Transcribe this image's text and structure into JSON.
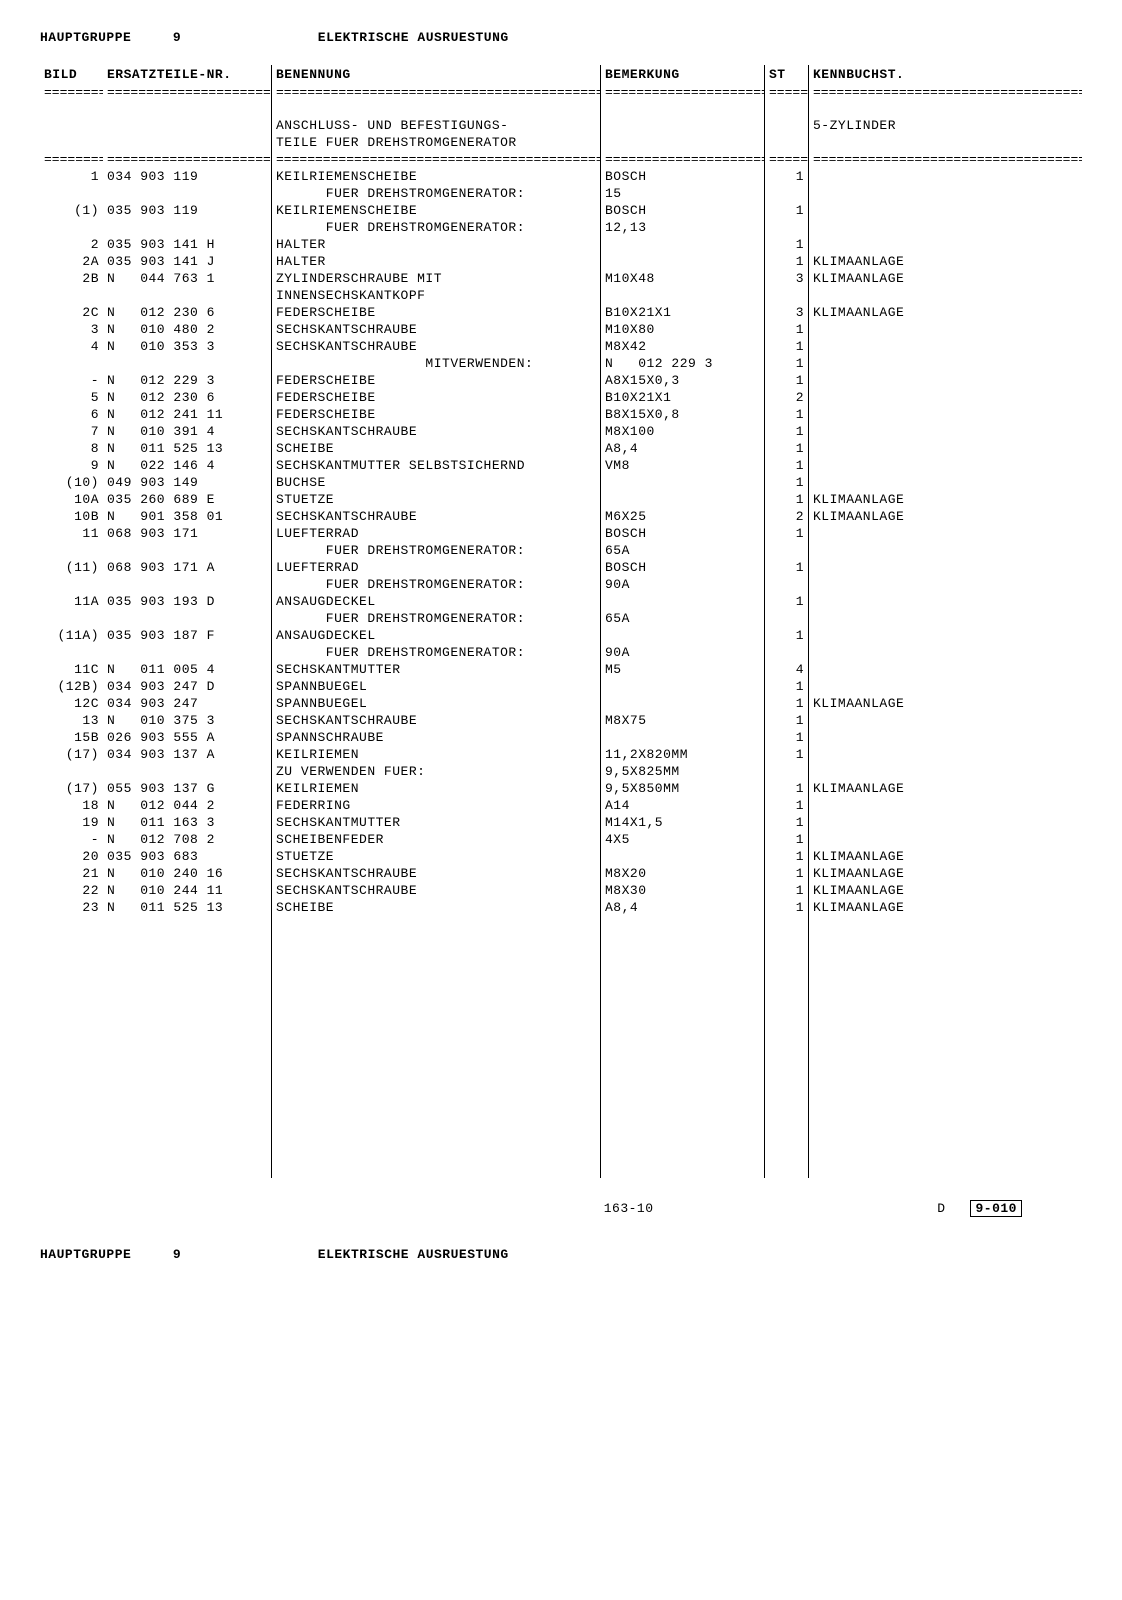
{
  "header": {
    "hauptgruppe_label": "HAUPTGRUPPE",
    "hauptgruppe_nr": "9",
    "title": "ELEKTRISCHE  AUSRUESTUNG"
  },
  "columns": {
    "bild": "BILD",
    "nr": "ERSATZTEILE-NR.",
    "ben": "BENENNUNG",
    "bem": "BEMERKUNG",
    "st": "ST",
    "kenn": "KENNBUCHST."
  },
  "intro": {
    "line1": "ANSCHLUSS- UND BEFESTIGUNGS-",
    "line2": "TEILE FUER DREHSTROMGENERATOR",
    "kenn": "5-ZYLINDER"
  },
  "rows": [
    {
      "bild": "1",
      "nr": "034 903 119",
      "ben": "KEILRIEMENSCHEIBE",
      "bem": "BOSCH",
      "st": "1",
      "kenn": ""
    },
    {
      "bild": "",
      "nr": "",
      "ben": "      FUER DREHSTROMGENERATOR:",
      "bem": "15",
      "st": "",
      "kenn": ""
    },
    {
      "bild": "(1)",
      "nr": "035 903 119",
      "ben": "KEILRIEMENSCHEIBE",
      "bem": "BOSCH",
      "st": "1",
      "kenn": ""
    },
    {
      "bild": "",
      "nr": "",
      "ben": "      FUER DREHSTROMGENERATOR:",
      "bem": "12,13",
      "st": "",
      "kenn": ""
    },
    {
      "bild": "2",
      "nr": "035 903 141 H",
      "ben": "HALTER",
      "bem": "",
      "st": "1",
      "kenn": ""
    },
    {
      "bild": "2A",
      "nr": "035 903 141 J",
      "ben": "HALTER",
      "bem": "",
      "st": "1",
      "kenn": "KLIMAANLAGE"
    },
    {
      "bild": "2B",
      "nr": "N   044 763 1",
      "ben": "ZYLINDERSCHRAUBE MIT",
      "bem": "M10X48",
      "st": "3",
      "kenn": "KLIMAANLAGE"
    },
    {
      "bild": "",
      "nr": "",
      "ben": "INNENSECHSKANTKOPF",
      "bem": "",
      "st": "",
      "kenn": ""
    },
    {
      "bild": "2C",
      "nr": "N   012 230 6",
      "ben": "FEDERSCHEIBE",
      "bem": "B10X21X1",
      "st": "3",
      "kenn": "KLIMAANLAGE"
    },
    {
      "bild": "3",
      "nr": "N   010 480 2",
      "ben": "SECHSKANTSCHRAUBE",
      "bem": "M10X80",
      "st": "1",
      "kenn": ""
    },
    {
      "bild": "4",
      "nr": "N   010 353 3",
      "ben": "SECHSKANTSCHRAUBE",
      "bem": "M8X42",
      "st": "1",
      "kenn": ""
    },
    {
      "bild": "",
      "nr": "",
      "ben": "                  MITVERWENDEN:",
      "bem": "N   012 229 3",
      "st": "1",
      "kenn": ""
    },
    {
      "bild": "-",
      "nr": "N   012 229 3",
      "ben": "FEDERSCHEIBE",
      "bem": "A8X15X0,3",
      "st": "1",
      "kenn": ""
    },
    {
      "bild": "5",
      "nr": "N   012 230 6",
      "ben": "FEDERSCHEIBE",
      "bem": "B10X21X1",
      "st": "2",
      "kenn": ""
    },
    {
      "bild": "6",
      "nr": "N   012 241 11",
      "ben": "FEDERSCHEIBE",
      "bem": "B8X15X0,8",
      "st": "1",
      "kenn": ""
    },
    {
      "bild": "7",
      "nr": "N   010 391 4",
      "ben": "SECHSKANTSCHRAUBE",
      "bem": "M8X100",
      "st": "1",
      "kenn": ""
    },
    {
      "bild": "8",
      "nr": "N   011 525 13",
      "ben": "SCHEIBE",
      "bem": "A8,4",
      "st": "1",
      "kenn": ""
    },
    {
      "bild": "9",
      "nr": "N   022 146 4",
      "ben": "SECHSKANTMUTTER SELBSTSICHERND",
      "bem": "VM8",
      "st": "1",
      "kenn": ""
    },
    {
      "bild": "(10)",
      "nr": "049 903 149",
      "ben": "BUCHSE",
      "bem": "",
      "st": "1",
      "kenn": ""
    },
    {
      "bild": "10A",
      "nr": "035 260 689 E",
      "ben": "STUETZE",
      "bem": "",
      "st": "1",
      "kenn": "KLIMAANLAGE"
    },
    {
      "bild": "10B",
      "nr": "N   901 358 01",
      "ben": "SECHSKANTSCHRAUBE",
      "bem": "M6X25",
      "st": "2",
      "kenn": "KLIMAANLAGE"
    },
    {
      "bild": "11",
      "nr": "068 903 171",
      "ben": "LUEFTERRAD",
      "bem": "BOSCH",
      "st": "1",
      "kenn": ""
    },
    {
      "bild": "",
      "nr": "",
      "ben": "      FUER DREHSTROMGENERATOR:",
      "bem": "65A",
      "st": "",
      "kenn": ""
    },
    {
      "bild": "(11)",
      "nr": "068 903 171 A",
      "ben": "LUEFTERRAD",
      "bem": "BOSCH",
      "st": "1",
      "kenn": ""
    },
    {
      "bild": "",
      "nr": "",
      "ben": "      FUER DREHSTROMGENERATOR:",
      "bem": "90A",
      "st": "",
      "kenn": ""
    },
    {
      "bild": "11A",
      "nr": "035 903 193 D",
      "ben": "ANSAUGDECKEL",
      "bem": "",
      "st": "1",
      "kenn": ""
    },
    {
      "bild": "",
      "nr": "",
      "ben": "      FUER DREHSTROMGENERATOR:",
      "bem": "65A",
      "st": "",
      "kenn": ""
    },
    {
      "bild": "(11A)",
      "nr": "035 903 187 F",
      "ben": "ANSAUGDECKEL",
      "bem": "",
      "st": "1",
      "kenn": ""
    },
    {
      "bild": "",
      "nr": "",
      "ben": "      FUER DREHSTROMGENERATOR:",
      "bem": "90A",
      "st": "",
      "kenn": ""
    },
    {
      "bild": "11C",
      "nr": "N   011 005 4",
      "ben": "SECHSKANTMUTTER",
      "bem": "M5",
      "st": "4",
      "kenn": ""
    },
    {
      "bild": "(12B)",
      "nr": "034 903 247 D",
      "ben": "SPANNBUEGEL",
      "bem": "",
      "st": "1",
      "kenn": ""
    },
    {
      "bild": "12C",
      "nr": "034 903 247",
      "ben": "SPANNBUEGEL",
      "bem": "",
      "st": "1",
      "kenn": "KLIMAANLAGE"
    },
    {
      "bild": "13",
      "nr": "N   010 375 3",
      "ben": "SECHSKANTSCHRAUBE",
      "bem": "M8X75",
      "st": "1",
      "kenn": ""
    },
    {
      "bild": "15B",
      "nr": "026 903 555 A",
      "ben": "SPANNSCHRAUBE",
      "bem": "",
      "st": "1",
      "kenn": ""
    },
    {
      "bild": "(17)",
      "nr": "034 903 137 A",
      "ben": "KEILRIEMEN",
      "bem": "11,2X820MM",
      "st": "1",
      "kenn": ""
    },
    {
      "bild": "",
      "nr": "",
      "ben": "ZU VERWENDEN FUER:",
      "bem": "9,5X825MM",
      "st": "",
      "kenn": ""
    },
    {
      "bild": "(17)",
      "nr": "055 903 137 G",
      "ben": "KEILRIEMEN",
      "bem": "9,5X850MM",
      "st": "1",
      "kenn": "KLIMAANLAGE"
    },
    {
      "bild": "18",
      "nr": "N   012 044 2",
      "ben": "FEDERRING",
      "bem": "A14",
      "st": "1",
      "kenn": ""
    },
    {
      "bild": "19",
      "nr": "N   011 163 3",
      "ben": "SECHSKANTMUTTER",
      "bem": "M14X1,5",
      "st": "1",
      "kenn": ""
    },
    {
      "bild": "-",
      "nr": "N   012 708 2",
      "ben": "SCHEIBENFEDER",
      "bem": "4X5",
      "st": "1",
      "kenn": ""
    },
    {
      "bild": "20",
      "nr": "035 903 683",
      "ben": "STUETZE",
      "bem": "",
      "st": "1",
      "kenn": "KLIMAANLAGE"
    },
    {
      "bild": "21",
      "nr": "N   010 240 16",
      "ben": "SECHSKANTSCHRAUBE",
      "bem": "M8X20",
      "st": "1",
      "kenn": "KLIMAANLAGE"
    },
    {
      "bild": "22",
      "nr": "N   010 244 11",
      "ben": "SECHSKANTSCHRAUBE",
      "bem": "M8X30",
      "st": "1",
      "kenn": "KLIMAANLAGE"
    },
    {
      "bild": "23",
      "nr": "N   011 525 13",
      "ben": "SCHEIBE",
      "bem": "A8,4",
      "st": "1",
      "kenn": "KLIMAANLAGE"
    }
  ],
  "footer": {
    "page_mid": "163-10",
    "page_right_prefix": "D",
    "page_right_box": "9-010",
    "bottom_hauptgruppe_label": "HAUPTGRUPPE",
    "bottom_hauptgruppe_nr": "9",
    "bottom_title": "ELEKTRISCHE  AUSRUESTUNG"
  },
  "sep": "================================================================================================="
}
